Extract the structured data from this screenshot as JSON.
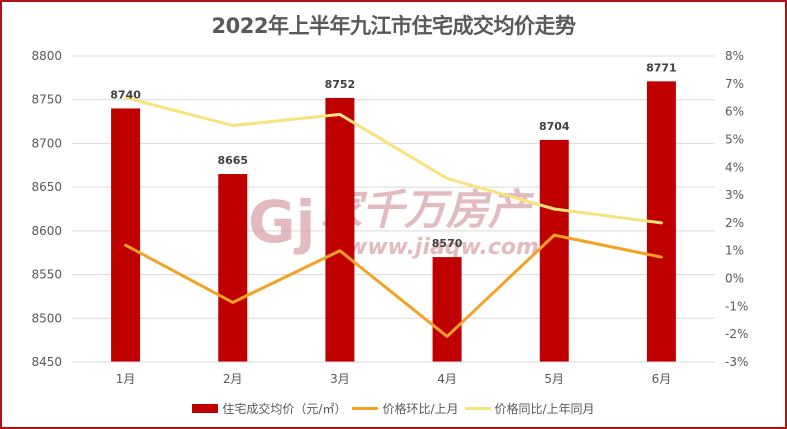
{
  "chart_data": {
    "type": "bar",
    "title": "2022年上半年九江市住宅成交均价走势",
    "categories": [
      "1月",
      "2月",
      "3月",
      "4月",
      "5月",
      "6月"
    ],
    "series": [
      {
        "name": "住宅成交均价（元/㎡）",
        "type": "bar",
        "axis": "left",
        "color": "#c00000",
        "values": [
          8740,
          8665,
          8752,
          8570,
          8704,
          8771
        ],
        "data_labels": [
          "8740",
          "8665",
          "8752",
          "8570",
          "8704",
          "8771"
        ]
      },
      {
        "name": "价格环比/上月",
        "type": "line",
        "axis": "right",
        "color": "#f4a124",
        "unit": "%",
        "values": [
          1.2,
          -0.86,
          1.0,
          -2.08,
          1.56,
          0.77
        ]
      },
      {
        "name": "价格同比/上年同月",
        "type": "line",
        "axis": "right",
        "color": "#f8e27a",
        "unit": "%",
        "values": [
          6.5,
          5.5,
          5.9,
          3.6,
          2.5,
          2.0
        ]
      }
    ],
    "y_left": {
      "min": 8450,
      "max": 8800,
      "step": 50,
      "ticks": [
        "8450",
        "8500",
        "8550",
        "8600",
        "8650",
        "8700",
        "8750",
        "8800"
      ]
    },
    "y_right": {
      "min": -3,
      "max": 8,
      "step": 1,
      "ticks": [
        "-3%",
        "-2%",
        "-1%",
        "0%",
        "1%",
        "2%",
        "3%",
        "4%",
        "5%",
        "6%",
        "7%",
        "8%"
      ]
    },
    "xlabel": "",
    "ylabel": "",
    "grid": true,
    "legend_position": "bottom"
  },
  "watermark": {
    "logo": "Gj",
    "brand": "家千万房产",
    "url": "www.jiaqw.com"
  },
  "colors": {
    "frame_border": "#b01116",
    "bar": "#c00000",
    "mom_line": "#f4a124",
    "yoy_line": "#f8e27a",
    "gridline": "#d9d9d9",
    "text": "#595959"
  }
}
